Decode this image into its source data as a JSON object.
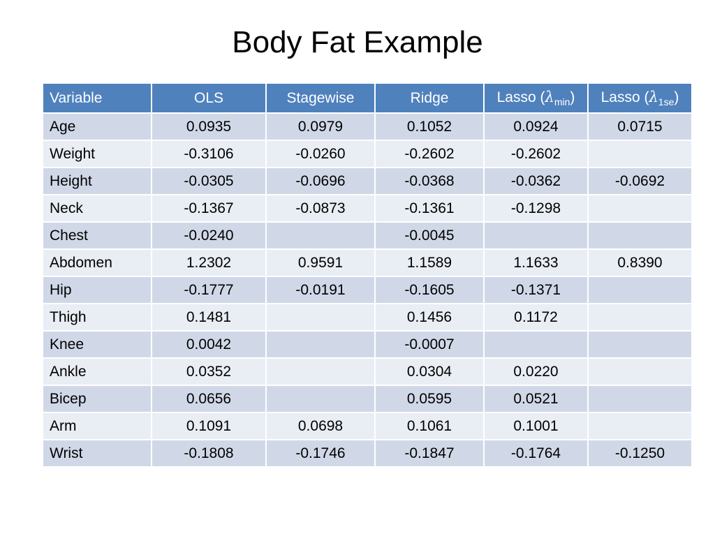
{
  "title": "Body Fat Example",
  "table": {
    "headers": {
      "variable": "Variable",
      "ols": "OLS",
      "stagewise": "Stagewise",
      "ridge": "Ridge",
      "lasso_min": {
        "prefix": "Lasso (",
        "symbol": "λ",
        "subscript": "min",
        "suffix": ")"
      },
      "lasso_1se": {
        "prefix": "Lasso (",
        "symbol": "λ",
        "subscript": "1se",
        "suffix": ")"
      }
    },
    "rows": [
      [
        "Age",
        "0.0935",
        "0.0979",
        "0.1052",
        "0.0924",
        "0.0715"
      ],
      [
        "Weight",
        "-0.3106",
        "-0.0260",
        "-0.2602",
        "-0.2602",
        ""
      ],
      [
        "Height",
        "-0.0305",
        "-0.0696",
        "-0.0368",
        "-0.0362",
        "-0.0692"
      ],
      [
        "Neck",
        "-0.1367",
        "-0.0873",
        "-0.1361",
        "-0.1298",
        ""
      ],
      [
        "Chest",
        "-0.0240",
        "",
        "-0.0045",
        "",
        ""
      ],
      [
        "Abdomen",
        "1.2302",
        "0.9591",
        "1.1589",
        "1.1633",
        "0.8390"
      ],
      [
        "Hip",
        "-0.1777",
        "-0.0191",
        "-0.1605",
        "-0.1371",
        ""
      ],
      [
        "Thigh",
        "0.1481",
        "",
        "0.1456",
        "0.1172",
        ""
      ],
      [
        "Knee",
        "0.0042",
        "",
        "-0.0007",
        "",
        ""
      ],
      [
        "Ankle",
        "0.0352",
        "",
        "0.0304",
        "0.0220",
        ""
      ],
      [
        "Bicep",
        "0.0656",
        "",
        "0.0595",
        "0.0521",
        ""
      ],
      [
        "Arm",
        "0.1091",
        "0.0698",
        "0.1061",
        "0.1001",
        ""
      ],
      [
        "Wrist",
        "-0.1808",
        "-0.1746",
        "-0.1847",
        "-0.1764",
        "-0.1250"
      ]
    ]
  },
  "colors": {
    "header_bg": "#4f81bd",
    "row_odd_bg": "#d0d8e8",
    "row_even_bg": "#e9edf4"
  }
}
